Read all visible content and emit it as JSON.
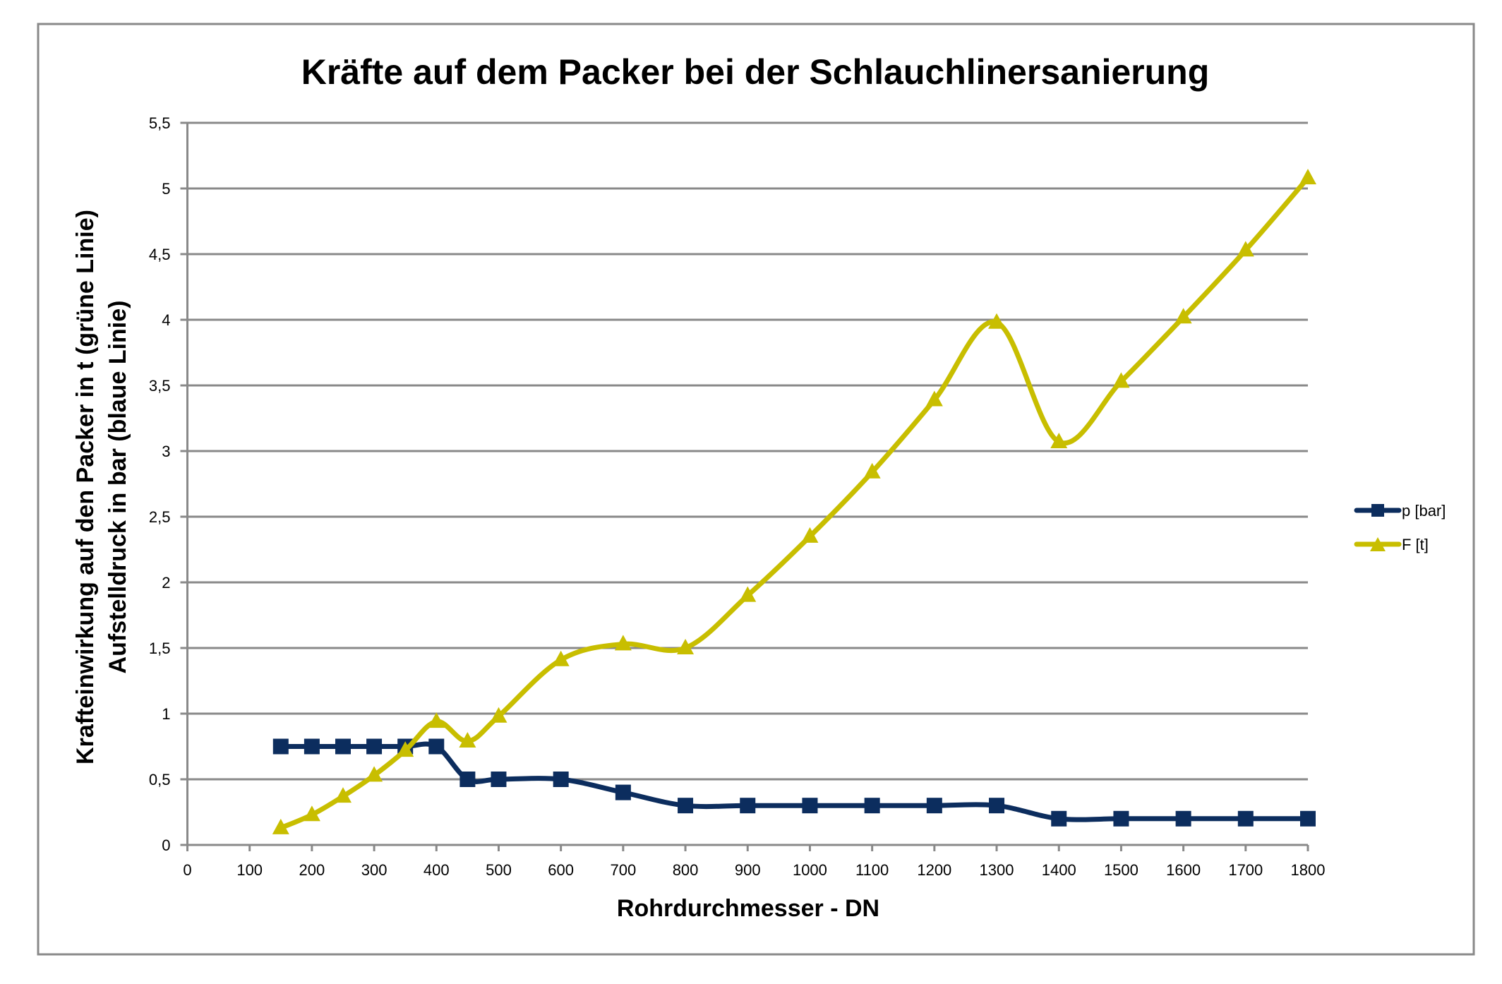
{
  "chart_data": {
    "type": "line",
    "title": "Kräfte auf dem Packer bei der Schlauchlinersanierung",
    "xlabel": "Rohrdurchmesser - DN",
    "ylabel_lines": [
      "Krafteinwirkung auf den Packer in t (grüne Linie)",
      "Aufstelldruck in bar (blaue Linie)"
    ],
    "xlim": [
      0,
      1800
    ],
    "ylim": [
      0,
      5.5
    ],
    "x_ticks": [
      0,
      100,
      200,
      300,
      400,
      500,
      600,
      700,
      800,
      900,
      1000,
      1100,
      1200,
      1300,
      1400,
      1500,
      1600,
      1700,
      1800
    ],
    "x_tick_labels": [
      "0",
      "100",
      "200",
      "300",
      "400",
      "500",
      "600",
      "700",
      "800",
      "900",
      "1000",
      "1100",
      "1200",
      "1300",
      "1400",
      "1500",
      "1600",
      "1700",
      "1800"
    ],
    "y_ticks": [
      0,
      0.5,
      1,
      1.5,
      2,
      2.5,
      3,
      3.5,
      4,
      4.5,
      5,
      5.5
    ],
    "y_tick_labels": [
      "0",
      "0,5",
      "1",
      "1,5",
      "2",
      "2,5",
      "3",
      "3,5",
      "4",
      "4,5",
      "5",
      "5,5"
    ],
    "grid": true,
    "smoothed": true,
    "legend_position": "right",
    "x": [
      150,
      200,
      250,
      300,
      350,
      400,
      450,
      500,
      600,
      700,
      800,
      900,
      1000,
      1100,
      1200,
      1300,
      1400,
      1500,
      1600,
      1700,
      1800
    ],
    "series": [
      {
        "name": "p [bar]",
        "marker": "square",
        "color": "#0C2D5E",
        "values": [
          0.75,
          0.75,
          0.75,
          0.75,
          0.75,
          0.75,
          0.5,
          0.5,
          0.5,
          0.4,
          0.3,
          0.3,
          0.3,
          0.3,
          0.3,
          0.3,
          0.2,
          0.2,
          0.2,
          0.2,
          0.2
        ]
      },
      {
        "name": "F [t]",
        "marker": "triangle",
        "color": "#C8BE00",
        "values": [
          0.13,
          0.23,
          0.37,
          0.53,
          0.72,
          0.94,
          0.79,
          0.98,
          1.41,
          1.53,
          1.5,
          1.9,
          2.35,
          2.84,
          3.39,
          3.98,
          3.07,
          3.53,
          4.02,
          4.53,
          5.08
        ]
      }
    ]
  }
}
